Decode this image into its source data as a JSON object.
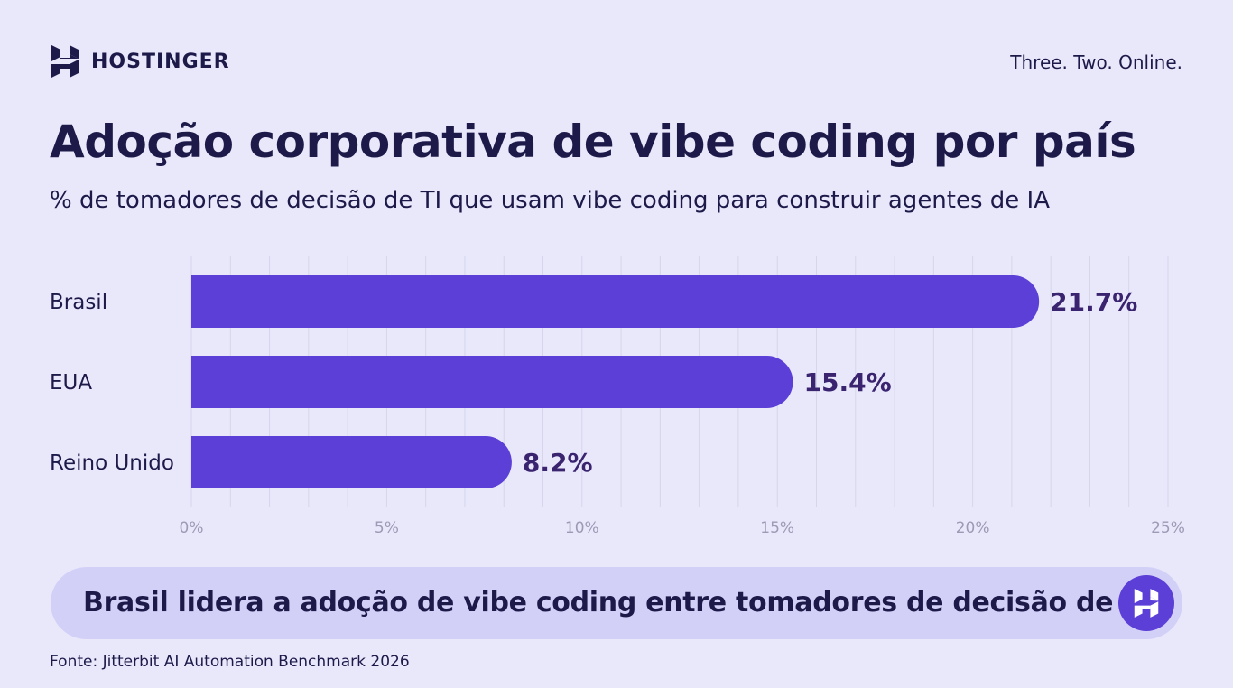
{
  "brand": {
    "name": "HOSTINGER",
    "tagline": "Three. Two. Online."
  },
  "title": "Adoção corporativa de vibe coding por país",
  "subtitle": "% de tomadores de decisão de TI que usam vibe coding para construir agentes de IA",
  "chart_data": {
    "type": "bar",
    "orientation": "horizontal",
    "categories": [
      "Brasil",
      "EUA",
      "Reino Unido"
    ],
    "values": [
      21.7,
      15.4,
      8.2
    ],
    "value_labels": [
      "21.7%",
      "15.4%",
      "8.2%"
    ],
    "xlim": [
      0,
      25
    ],
    "x_ticks": [
      0,
      5,
      10,
      15,
      20,
      25
    ],
    "x_tick_labels": [
      "0%",
      "5%",
      "10%",
      "15%",
      "20%",
      "25%"
    ],
    "grid": true,
    "bar_color": "#5b3fd6"
  },
  "callout": {
    "text": "Brasil lidera a adoção de vibe coding entre tomadores de decisão de TI",
    "icon": "hostinger-logo-icon"
  },
  "source": "Fonte: Jitterbit AI Automation Benchmark 2026",
  "colors": {
    "background": "#e9e8fb",
    "accent": "#5b3fd6",
    "text": "#1d1a4a",
    "callout_bg": "#d3d0f8"
  }
}
